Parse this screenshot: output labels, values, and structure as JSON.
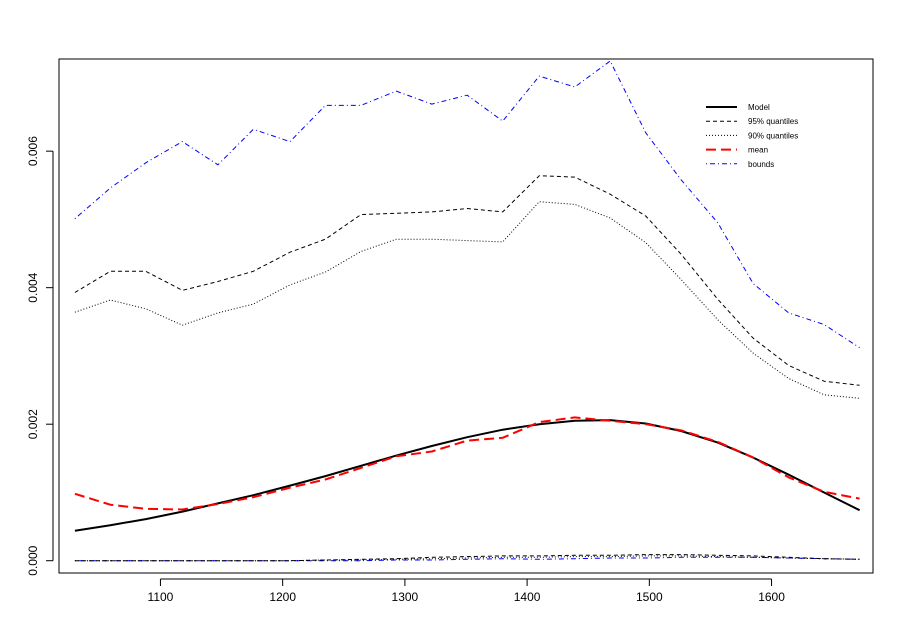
{
  "chart_data": {
    "type": "line",
    "title": "",
    "xlabel": "",
    "ylabel": "",
    "xlim": [
      1017,
      1683
    ],
    "ylim": [
      -0.00018,
      0.00735
    ],
    "xticks": [
      1100,
      1200,
      1300,
      1400,
      1500,
      1600
    ],
    "yticks": [
      0.0,
      0.002,
      0.004,
      0.006
    ],
    "xtick_labels": [
      "1100",
      "1200",
      "1300",
      "1400",
      "1500",
      "1600"
    ],
    "ytick_labels": [
      "0.000",
      "0.002",
      "0.004",
      "0.006"
    ],
    "grid": false,
    "legend_position": "top-right",
    "x": [
      1030,
      1059,
      1088,
      1118,
      1147,
      1176,
      1206,
      1235,
      1264,
      1293,
      1322,
      1351,
      1380,
      1410,
      1439,
      1468,
      1497,
      1526,
      1556,
      1585,
      1614,
      1643,
      1672
    ],
    "series": [
      {
        "name": "Model",
        "color": "#000000",
        "dash": "solid",
        "width": 2,
        "values": [
          0.00044,
          0.00052,
          0.00061,
          0.00072,
          0.00084,
          0.00096,
          0.0011,
          0.00124,
          0.00139,
          0.00154,
          0.00168,
          0.00181,
          0.00192,
          0.002,
          0.00205,
          0.00206,
          0.00201,
          0.0019,
          0.00173,
          0.00151,
          0.00126,
          0.001,
          0.00074
        ]
      },
      {
        "name": "95% quantiles",
        "color": "#000000",
        "dash": "dashed",
        "width": 1,
        "values": [
          0.00393,
          0.00424,
          0.00424,
          0.00396,
          0.00409,
          0.00424,
          0.00452,
          0.00471,
          0.00507,
          0.00509,
          0.00511,
          0.00516,
          0.00511,
          0.00564,
          0.00562,
          0.00537,
          0.00505,
          0.00449,
          0.00383,
          0.00326,
          0.00286,
          0.00263,
          0.00257
        ]
      },
      {
        "name": "90% quantiles",
        "color": "#000000",
        "dash": "dotted",
        "width": 1,
        "values": [
          0.00364,
          0.00382,
          0.00369,
          0.00345,
          0.00363,
          0.00376,
          0.00404,
          0.00423,
          0.00453,
          0.00471,
          0.00471,
          0.00469,
          0.00467,
          0.00526,
          0.00522,
          0.00502,
          0.00466,
          0.00412,
          0.00353,
          0.00304,
          0.00267,
          0.00243,
          0.00238
        ]
      },
      {
        "name": "mean",
        "color": "#ff0000",
        "dash": "longdash",
        "width": 2,
        "values": [
          0.00098,
          0.00082,
          0.00076,
          0.00075,
          0.00083,
          0.00093,
          0.00107,
          0.00119,
          0.00136,
          0.00153,
          0.0016,
          0.00176,
          0.0018,
          0.00203,
          0.0021,
          0.00205,
          0.002,
          0.00191,
          0.00174,
          0.00151,
          0.00122,
          0.00101,
          0.00091
        ]
      },
      {
        "name": "bounds",
        "color": "#0000ff",
        "dash": "dotdash",
        "width": 1,
        "values": [
          0.00501,
          0.00546,
          0.00583,
          0.00614,
          0.0058,
          0.00632,
          0.00614,
          0.00667,
          0.00667,
          0.00688,
          0.00669,
          0.00682,
          0.00644,
          0.0071,
          0.00694,
          0.00732,
          0.00627,
          0.00558,
          0.00495,
          0.00406,
          0.00363,
          0.00346,
          0.00312
        ]
      },
      {
        "name": "",
        "color": "#0000ff",
        "dash": "dotdash",
        "width": 1,
        "values": [
          0.0,
          0.0,
          0.0,
          0.0,
          0.0,
          0.0,
          0.0,
          0.0,
          0.0,
          1e-05,
          1e-05,
          2e-05,
          3e-05,
          2e-05,
          3e-05,
          4e-05,
          4e-05,
          5e-05,
          5e-05,
          5e-05,
          4e-05,
          3e-05,
          2e-05
        ]
      },
      {
        "name": "",
        "color": "#000000",
        "dash": "dashed",
        "width": 1,
        "values": [
          0.0,
          0.0,
          0.0,
          0.0,
          0.0,
          0.0,
          0.0,
          1e-05,
          2e-05,
          3e-05,
          5e-05,
          6e-05,
          7e-05,
          7e-05,
          8e-05,
          8e-05,
          9e-05,
          9e-05,
          8e-05,
          7e-05,
          5e-05,
          3e-05,
          2e-05
        ]
      },
      {
        "name": "",
        "color": "#000000",
        "dash": "dotted",
        "width": 1,
        "values": [
          0.0,
          0.0,
          0.0,
          0.0,
          0.0,
          0.0,
          0.0,
          1e-05,
          1e-05,
          2e-05,
          3e-05,
          4e-05,
          5e-05,
          5e-05,
          6e-05,
          6e-05,
          7e-05,
          7e-05,
          6e-05,
          5e-05,
          4e-05,
          3e-05,
          2e-05
        ]
      }
    ]
  }
}
